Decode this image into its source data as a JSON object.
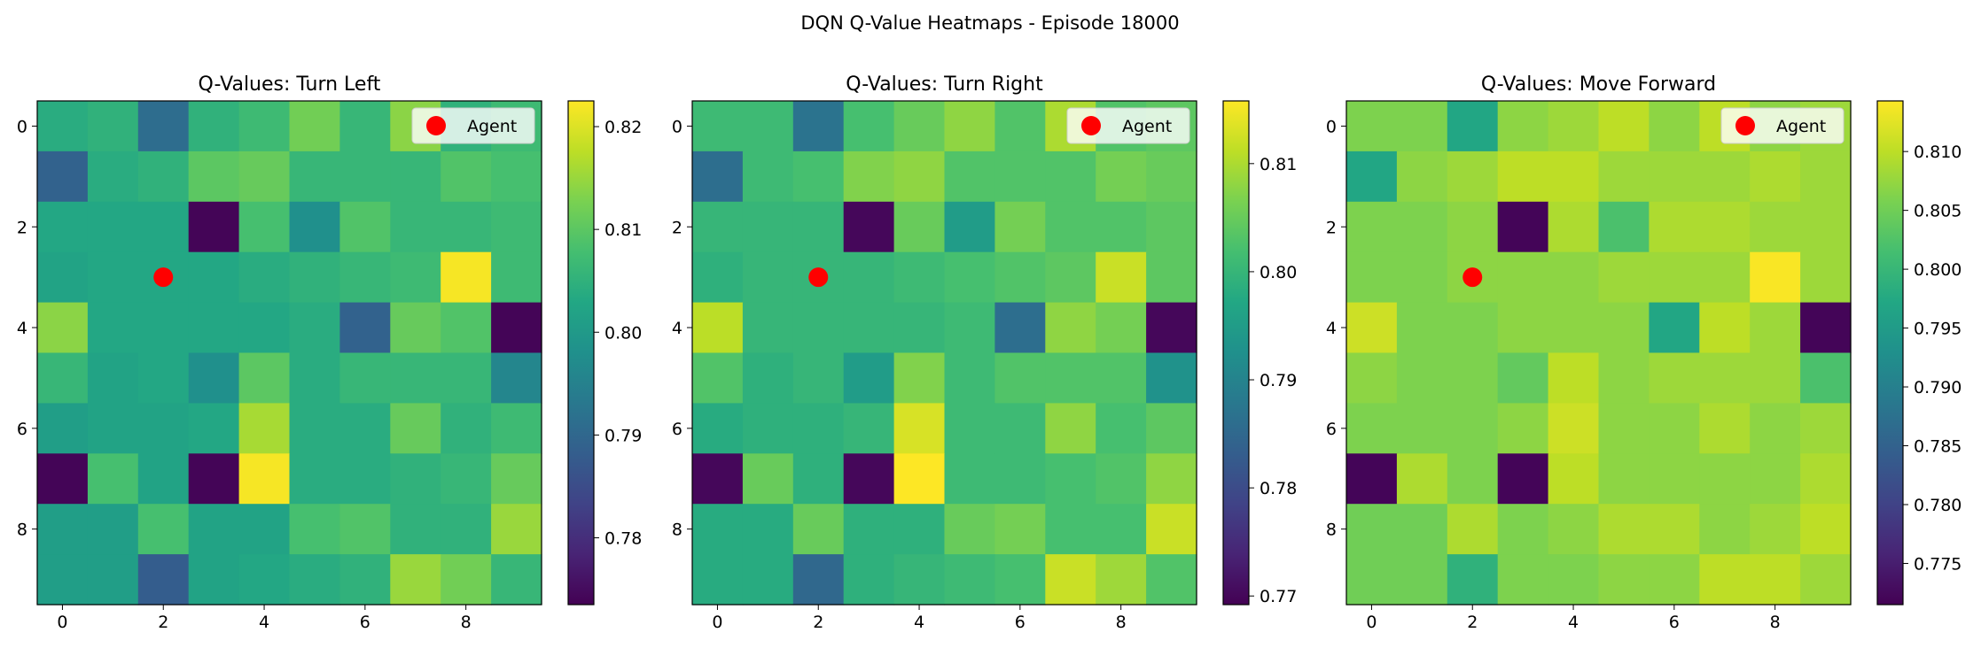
{
  "figure": {
    "suptitle": "DQN Q-Value Heatmaps - Episode 18000"
  },
  "agent": {
    "row": 3,
    "col": 2,
    "legend_label": "Agent",
    "marker_color": "#ff0000"
  },
  "colormap": "viridis",
  "chart_data": [
    {
      "type": "heatmap",
      "title": "Q-Values: Turn Left",
      "xticks": [
        "0",
        "2",
        "4",
        "6",
        "8"
      ],
      "yticks": [
        "0",
        "2",
        "4",
        "6",
        "8"
      ],
      "legend": {
        "entries": [
          "Agent"
        ],
        "placement": "upper-right"
      },
      "colorbar": {
        "vmin": 0.7735,
        "vmax": 0.8225,
        "ticks": [
          0.78,
          0.79,
          0.8,
          0.81,
          0.82
        ],
        "tick_labels": [
          "0.78",
          "0.79",
          "0.80",
          "0.81",
          "0.82"
        ]
      },
      "values": [
        [
          0.804,
          0.805,
          0.791,
          0.805,
          0.807,
          0.812,
          0.806,
          0.814,
          0.805,
          0.807
        ],
        [
          0.789,
          0.804,
          0.805,
          0.81,
          0.811,
          0.806,
          0.806,
          0.806,
          0.809,
          0.808
        ],
        [
          0.803,
          0.803,
          0.803,
          0.774,
          0.808,
          0.798,
          0.809,
          0.806,
          0.806,
          0.807
        ],
        [
          0.802,
          0.803,
          0.803,
          0.803,
          0.804,
          0.805,
          0.806,
          0.807,
          0.822,
          0.807
        ],
        [
          0.814,
          0.803,
          0.803,
          0.803,
          0.803,
          0.804,
          0.789,
          0.811,
          0.809,
          0.774
        ],
        [
          0.806,
          0.802,
          0.803,
          0.798,
          0.81,
          0.804,
          0.806,
          0.806,
          0.806,
          0.796
        ],
        [
          0.801,
          0.802,
          0.802,
          0.803,
          0.816,
          0.804,
          0.804,
          0.811,
          0.805,
          0.807
        ],
        [
          0.774,
          0.808,
          0.802,
          0.774,
          0.822,
          0.804,
          0.804,
          0.805,
          0.806,
          0.811
        ],
        [
          0.801,
          0.801,
          0.808,
          0.802,
          0.802,
          0.808,
          0.809,
          0.805,
          0.805,
          0.815
        ],
        [
          0.801,
          0.801,
          0.788,
          0.802,
          0.803,
          0.804,
          0.805,
          0.815,
          0.812,
          0.806
        ]
      ]
    },
    {
      "type": "heatmap",
      "title": "Q-Values: Turn Right",
      "xticks": [
        "0",
        "2",
        "4",
        "6",
        "8"
      ],
      "yticks": [
        "0",
        "2",
        "4",
        "6",
        "8"
      ],
      "legend": {
        "entries": [
          "Agent"
        ],
        "placement": "upper-right"
      },
      "colorbar": {
        "vmin": 0.7692,
        "vmax": 0.8158,
        "ticks": [
          0.77,
          0.78,
          0.79,
          0.8,
          0.81
        ],
        "tick_labels": [
          "0.77",
          "0.78",
          "0.79",
          "0.80",
          "0.81"
        ]
      },
      "values": [
        [
          0.801,
          0.801,
          0.787,
          0.802,
          0.805,
          0.808,
          0.803,
          0.81,
          0.803,
          0.804
        ],
        [
          0.786,
          0.801,
          0.802,
          0.807,
          0.808,
          0.803,
          0.803,
          0.803,
          0.806,
          0.805
        ],
        [
          0.8,
          0.8,
          0.8,
          0.77,
          0.805,
          0.795,
          0.806,
          0.803,
          0.803,
          0.804
        ],
        [
          0.799,
          0.8,
          0.8,
          0.8,
          0.801,
          0.802,
          0.803,
          0.804,
          0.812,
          0.804
        ],
        [
          0.811,
          0.8,
          0.8,
          0.8,
          0.8,
          0.801,
          0.786,
          0.808,
          0.806,
          0.77
        ],
        [
          0.803,
          0.799,
          0.8,
          0.795,
          0.807,
          0.801,
          0.803,
          0.803,
          0.803,
          0.793
        ],
        [
          0.798,
          0.799,
          0.799,
          0.8,
          0.813,
          0.801,
          0.801,
          0.808,
          0.802,
          0.804
        ],
        [
          0.77,
          0.805,
          0.799,
          0.77,
          0.816,
          0.801,
          0.801,
          0.802,
          0.803,
          0.808
        ],
        [
          0.798,
          0.798,
          0.805,
          0.799,
          0.799,
          0.805,
          0.806,
          0.802,
          0.802,
          0.812
        ],
        [
          0.798,
          0.798,
          0.785,
          0.799,
          0.8,
          0.801,
          0.802,
          0.812,
          0.809,
          0.803
        ]
      ]
    },
    {
      "type": "heatmap",
      "title": "Q-Values: Move Forward",
      "xticks": [
        "0",
        "2",
        "4",
        "6",
        "8"
      ],
      "yticks": [
        "0",
        "2",
        "4",
        "6",
        "8"
      ],
      "legend": {
        "entries": [
          "Agent"
        ],
        "placement": "upper-right"
      },
      "colorbar": {
        "vmin": 0.7715,
        "vmax": 0.8143,
        "ticks": [
          0.775,
          0.78,
          0.785,
          0.79,
          0.795,
          0.8,
          0.805,
          0.81
        ],
        "tick_labels": [
          "0.775",
          "0.780",
          "0.785",
          "0.790",
          "0.795",
          "0.800",
          "0.805",
          "0.810"
        ]
      },
      "values": [
        [
          0.806,
          0.806,
          0.797,
          0.807,
          0.808,
          0.81,
          0.807,
          0.81,
          0.807,
          0.808
        ],
        [
          0.797,
          0.807,
          0.808,
          0.81,
          0.81,
          0.808,
          0.808,
          0.808,
          0.809,
          0.808
        ],
        [
          0.806,
          0.806,
          0.807,
          0.772,
          0.809,
          0.802,
          0.809,
          0.809,
          0.808,
          0.808
        ],
        [
          0.806,
          0.806,
          0.807,
          0.807,
          0.807,
          0.808,
          0.808,
          0.808,
          0.814,
          0.808
        ],
        [
          0.811,
          0.806,
          0.806,
          0.807,
          0.807,
          0.807,
          0.797,
          0.81,
          0.808,
          0.772
        ],
        [
          0.807,
          0.806,
          0.806,
          0.804,
          0.81,
          0.807,
          0.808,
          0.808,
          0.808,
          0.802
        ],
        [
          0.806,
          0.806,
          0.806,
          0.807,
          0.811,
          0.807,
          0.807,
          0.809,
          0.807,
          0.808
        ],
        [
          0.772,
          0.809,
          0.806,
          0.772,
          0.81,
          0.807,
          0.807,
          0.807,
          0.807,
          0.809
        ],
        [
          0.805,
          0.805,
          0.809,
          0.806,
          0.807,
          0.809,
          0.809,
          0.807,
          0.808,
          0.81
        ],
        [
          0.805,
          0.805,
          0.799,
          0.806,
          0.806,
          0.807,
          0.807,
          0.81,
          0.81,
          0.808
        ]
      ]
    }
  ]
}
